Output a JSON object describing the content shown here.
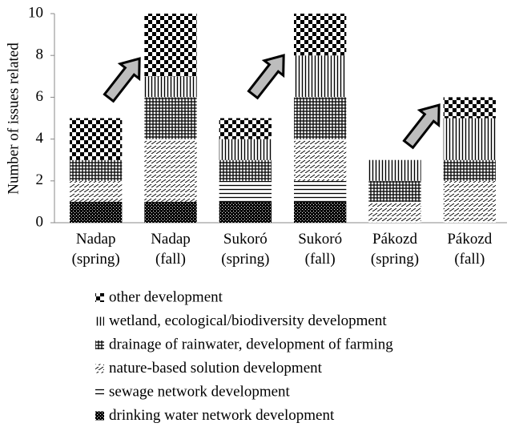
{
  "chart_data": {
    "type": "stacked_bar",
    "y_label": "Number of issues related",
    "categories": [
      "Nadap (spring)",
      "Nadap (fall)",
      "Sukoró (spring)",
      "Sukoró (fall)",
      "Pákozd (spring)",
      "Pákozd (fall)"
    ],
    "series": [
      {
        "name": "drinking water network development",
        "color": "#000000",
        "values": [
          1,
          1,
          1,
          1,
          0,
          0
        ]
      },
      {
        "name": "sewage network development",
        "color": "#000000",
        "values": [
          0,
          0,
          1,
          1,
          0,
          0
        ]
      },
      {
        "name": "nature-based solution development",
        "color": "#000000",
        "values": [
          1,
          3,
          0,
          2,
          1,
          2
        ]
      },
      {
        "name": "drainage of rainwater, development of farming",
        "color": "#000000",
        "values": [
          1,
          2,
          1,
          2,
          1,
          1
        ]
      },
      {
        "name": "wetland, ecological/biodiversity development",
        "color": "#000000",
        "values": [
          0,
          1,
          1,
          2,
          1,
          2
        ]
      },
      {
        "name": "other development",
        "color": "#000000",
        "values": [
          2,
          3,
          1,
          2,
          0,
          1
        ]
      }
    ],
    "ylim": [
      0,
      10
    ],
    "yticks": [
      0,
      2,
      4,
      6,
      8,
      10
    ]
  }
}
